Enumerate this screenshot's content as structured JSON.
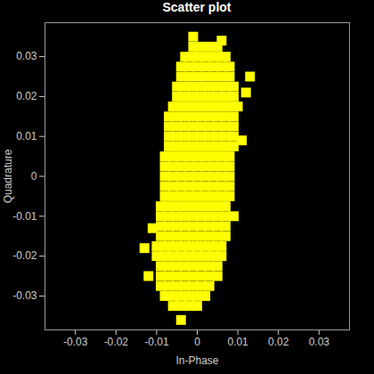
{
  "chart_data": {
    "type": "scatter",
    "title": "Scatter plot",
    "x_label": "In-Phase",
    "y_label": "Quadrature",
    "color": "#ffff00",
    "marker": "square",
    "grid": false,
    "xlim": [
      -0.0375,
      0.0375
    ],
    "ylim": [
      -0.0385,
      0.0385
    ],
    "xticks": [
      -0.03,
      -0.02,
      -0.01,
      0,
      0.01,
      0.02,
      0.03
    ],
    "yticks": [
      -0.03,
      -0.02,
      -0.01,
      0,
      0.01,
      0.02,
      0.03
    ],
    "x": [
      -0.006,
      -0.004,
      -0.002,
      0,
      -0.008,
      -0.006,
      -0.004,
      -0.002,
      0,
      0.002,
      -0.009,
      -0.007,
      -0.005,
      -0.003,
      -0.001,
      0.001,
      0.003,
      -0.009,
      -0.007,
      -0.005,
      -0.003,
      -0.001,
      0.001,
      0.003,
      0.005,
      -0.009,
      -0.007,
      -0.005,
      -0.003,
      -0.001,
      0.001,
      0.003,
      0.005,
      -0.01,
      -0.008,
      -0.006,
      -0.004,
      -0.002,
      0,
      0.002,
      0.004,
      0.006,
      -0.01,
      -0.008,
      -0.006,
      -0.004,
      -0.002,
      0,
      0.002,
      0.004,
      0.006,
      -0.009,
      -0.007,
      -0.005,
      -0.003,
      -0.001,
      0.001,
      0.003,
      0.005,
      0.007,
      -0.009,
      -0.007,
      -0.005,
      -0.003,
      -0.001,
      0.001,
      0.003,
      0.005,
      0.007,
      -0.009,
      -0.007,
      -0.005,
      -0.003,
      -0.001,
      0.001,
      0.003,
      0.005,
      0.007,
      -0.009,
      -0.007,
      -0.005,
      -0.003,
      -0.001,
      0.001,
      0.003,
      0.005,
      0.007,
      -0.008,
      -0.006,
      -0.004,
      -0.002,
      0,
      0.002,
      0.004,
      0.006,
      0.008,
      -0.008,
      -0.006,
      -0.004,
      -0.002,
      0,
      0.002,
      0.004,
      0.006,
      0.008,
      -0.008,
      -0.006,
      -0.004,
      -0.002,
      0,
      0.002,
      0.004,
      0.006,
      0.008,
      -0.008,
      -0.006,
      -0.004,
      -0.002,
      0,
      0.002,
      0.004,
      0.006,
      0.008,
      -0.008,
      -0.006,
      -0.004,
      -0.002,
      0,
      0.002,
      0.004,
      0.006,
      0.008,
      -0.007,
      -0.005,
      -0.003,
      -0.001,
      0.001,
      0.003,
      0.005,
      0.007,
      0.009,
      -0.007,
      -0.005,
      -0.003,
      -0.001,
      0.001,
      0.003,
      0.005,
      0.007,
      0.009,
      -0.007,
      -0.005,
      -0.003,
      -0.001,
      0.001,
      0.003,
      0.005,
      0.007,
      0.009,
      -0.007,
      -0.005,
      -0.003,
      -0.001,
      0.001,
      0.003,
      0.005,
      0.007,
      0.009,
      -0.006,
      -0.004,
      -0.002,
      0,
      0.002,
      0.004,
      0.006,
      0.008,
      0.01,
      -0.005,
      -0.003,
      -0.001,
      0.001,
      0.003,
      0.005,
      0.007,
      0.009,
      -0.005,
      -0.003,
      -0.001,
      0.001,
      0.003,
      0.005,
      0.007,
      0.009,
      -0.004,
      -0.002,
      0,
      0.002,
      0.004,
      0.006,
      0.008,
      -0.004,
      -0.002,
      0,
      0.002,
      0.004,
      0.006,
      0.008,
      -0.003,
      -0.001,
      0.001,
      0.003,
      0.005,
      0.007,
      -0.001,
      0.001,
      0.003,
      0.005,
      0.013,
      0.012,
      -0.012,
      -0.011,
      0.011,
      0.006,
      -0.004,
      -0.001,
      0.009,
      -0.013
    ],
    "values": [
      -0.0325,
      -0.0325,
      -0.0325,
      -0.0325,
      -0.03,
      -0.03,
      -0.03,
      -0.03,
      -0.03,
      -0.03,
      -0.0275,
      -0.0275,
      -0.0275,
      -0.0275,
      -0.0275,
      -0.0275,
      -0.0275,
      -0.025,
      -0.025,
      -0.025,
      -0.025,
      -0.025,
      -0.025,
      -0.025,
      -0.025,
      -0.0225,
      -0.0225,
      -0.0225,
      -0.0225,
      -0.0225,
      -0.0225,
      -0.0225,
      -0.0225,
      -0.02,
      -0.02,
      -0.02,
      -0.02,
      -0.02,
      -0.02,
      -0.02,
      -0.02,
      -0.02,
      -0.0175,
      -0.0175,
      -0.0175,
      -0.0175,
      -0.0175,
      -0.0175,
      -0.0175,
      -0.0175,
      -0.0175,
      -0.015,
      -0.015,
      -0.015,
      -0.015,
      -0.015,
      -0.015,
      -0.015,
      -0.015,
      -0.015,
      -0.0125,
      -0.0125,
      -0.0125,
      -0.0125,
      -0.0125,
      -0.0125,
      -0.0125,
      -0.0125,
      -0.0125,
      -0.01,
      -0.01,
      -0.01,
      -0.01,
      -0.01,
      -0.01,
      -0.01,
      -0.01,
      -0.01,
      -0.0075,
      -0.0075,
      -0.0075,
      -0.0075,
      -0.0075,
      -0.0075,
      -0.0075,
      -0.0075,
      -0.0075,
      -0.005,
      -0.005,
      -0.005,
      -0.005,
      -0.005,
      -0.005,
      -0.005,
      -0.005,
      -0.005,
      -0.0025,
      -0.0025,
      -0.0025,
      -0.0025,
      -0.0025,
      -0.0025,
      -0.0025,
      -0.0025,
      -0.0025,
      0,
      0,
      0,
      0,
      0,
      0,
      0,
      0,
      0,
      0.0025,
      0.0025,
      0.0025,
      0.0025,
      0.0025,
      0.0025,
      0.0025,
      0.0025,
      0.0025,
      0.005,
      0.005,
      0.005,
      0.005,
      0.005,
      0.005,
      0.005,
      0.005,
      0.005,
      0.0075,
      0.0075,
      0.0075,
      0.0075,
      0.0075,
      0.0075,
      0.0075,
      0.0075,
      0.0075,
      0.01,
      0.01,
      0.01,
      0.01,
      0.01,
      0.01,
      0.01,
      0.01,
      0.01,
      0.0125,
      0.0125,
      0.0125,
      0.0125,
      0.0125,
      0.0125,
      0.0125,
      0.0125,
      0.0125,
      0.015,
      0.015,
      0.015,
      0.015,
      0.015,
      0.015,
      0.015,
      0.015,
      0.015,
      0.0175,
      0.0175,
      0.0175,
      0.0175,
      0.0175,
      0.0175,
      0.0175,
      0.0175,
      0.0175,
      0.02,
      0.02,
      0.02,
      0.02,
      0.02,
      0.02,
      0.02,
      0.02,
      0.0225,
      0.0225,
      0.0225,
      0.0225,
      0.0225,
      0.0225,
      0.0225,
      0.0225,
      0.025,
      0.025,
      0.025,
      0.025,
      0.025,
      0.025,
      0.025,
      0.0275,
      0.0275,
      0.0275,
      0.0275,
      0.0275,
      0.0275,
      0.0275,
      0.03,
      0.03,
      0.03,
      0.03,
      0.03,
      0.03,
      0.0325,
      0.0325,
      0.0325,
      0.0325,
      0.025,
      0.021,
      -0.025,
      -0.013,
      0.009,
      0.034,
      -0.036,
      0.035,
      -0.01,
      -0.018
    ]
  }
}
